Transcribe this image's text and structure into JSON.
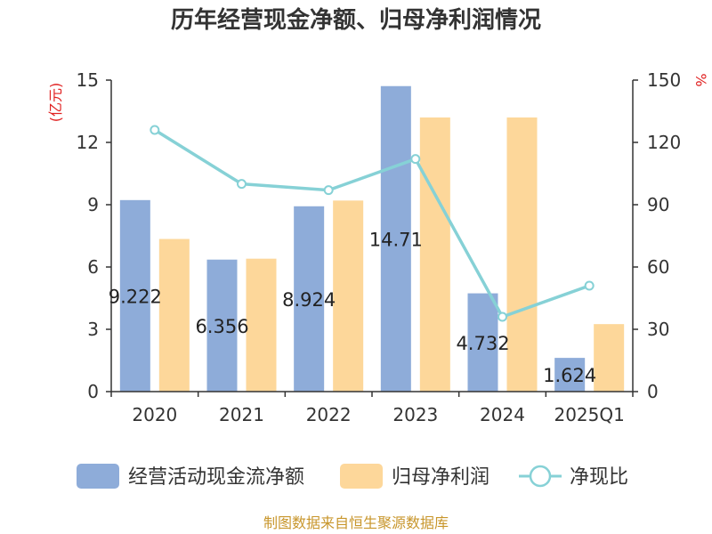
{
  "chart_data": {
    "type": "bar",
    "title": "历年经营现金净额、归母净利润情况",
    "left_axis_unit": "(亿元)",
    "right_axis_unit": "%",
    "categories": [
      "2020",
      "2021",
      "2022",
      "2023",
      "2024",
      "2025Q1"
    ],
    "left_axis_ticks": [
      "0",
      "3",
      "6",
      "9",
      "12",
      "15"
    ],
    "right_axis_ticks": [
      "0",
      "30",
      "60",
      "90",
      "120",
      "150"
    ],
    "ylim_left": [
      0,
      15
    ],
    "ylim_right": [
      0,
      150
    ],
    "series": [
      {
        "name": "经营活动现金流净额",
        "type": "bar",
        "axis": "left",
        "color": "#8eacd9",
        "values": [
          9.222,
          6.356,
          8.924,
          14.711,
          4.732,
          1.624
        ],
        "labels": [
          "9.222",
          "6.356",
          "8.924",
          "14.71",
          "4.732",
          "1.624"
        ]
      },
      {
        "name": "归母净利润",
        "type": "bar",
        "axis": "left",
        "color": "#fdd79a",
        "values": [
          7.35,
          6.4,
          9.2,
          13.2,
          13.2,
          3.25
        ]
      },
      {
        "name": "净现比",
        "type": "line",
        "axis": "right",
        "color": "#86d1d6",
        "values": [
          126,
          100,
          97,
          112,
          36,
          51
        ]
      }
    ],
    "source": "制图数据来自恒生聚源数据库",
    "grid": false,
    "legend_position": "bottom"
  }
}
